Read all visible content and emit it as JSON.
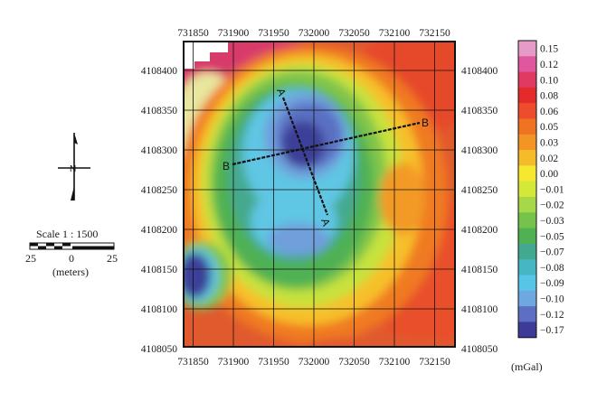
{
  "map": {
    "x_ticks": [
      "731850",
      "731900",
      "731950",
      "732000",
      "732050",
      "732100",
      "732150"
    ],
    "y_ticks": [
      "4108400",
      "4108350",
      "4108300",
      "4108250",
      "4108200",
      "4108150",
      "4108100",
      "4108050"
    ],
    "profiles": [
      {
        "name": "A",
        "end_label_start": "A",
        "end_label_end": "A′"
      },
      {
        "name": "B",
        "end_label_start": "B",
        "end_label_end": "B"
      }
    ],
    "north_label": "N",
    "grid": true
  },
  "scale_bar": {
    "title": "Scale 1 : 1500",
    "labels": [
      "25",
      "0",
      "25"
    ],
    "unit": "(meters)"
  },
  "colorbar": {
    "unit": "(mGal)",
    "values": [
      "0.15",
      "0.12",
      "0.10",
      "0.08",
      "0.06",
      "0.05",
      "0.03",
      "0.02",
      "0.00",
      "−0.01",
      "−0.02",
      "−0.03",
      "−0.05",
      "−0.07",
      "−0.08",
      "−0.09",
      "−0.10",
      "−0.12",
      "−0.17"
    ],
    "colors": [
      "#e69ac8",
      "#e0579f",
      "#e03a63",
      "#e52a2a",
      "#ed4d2c",
      "#f07324",
      "#f39525",
      "#f6bb2a",
      "#f5e82e",
      "#d4e83a",
      "#a6d84a",
      "#75c34c",
      "#4fb152",
      "#42a890",
      "#46b6c4",
      "#57c5e6",
      "#6fa7e1",
      "#5c6fc3",
      "#3c3c98"
    ]
  }
}
